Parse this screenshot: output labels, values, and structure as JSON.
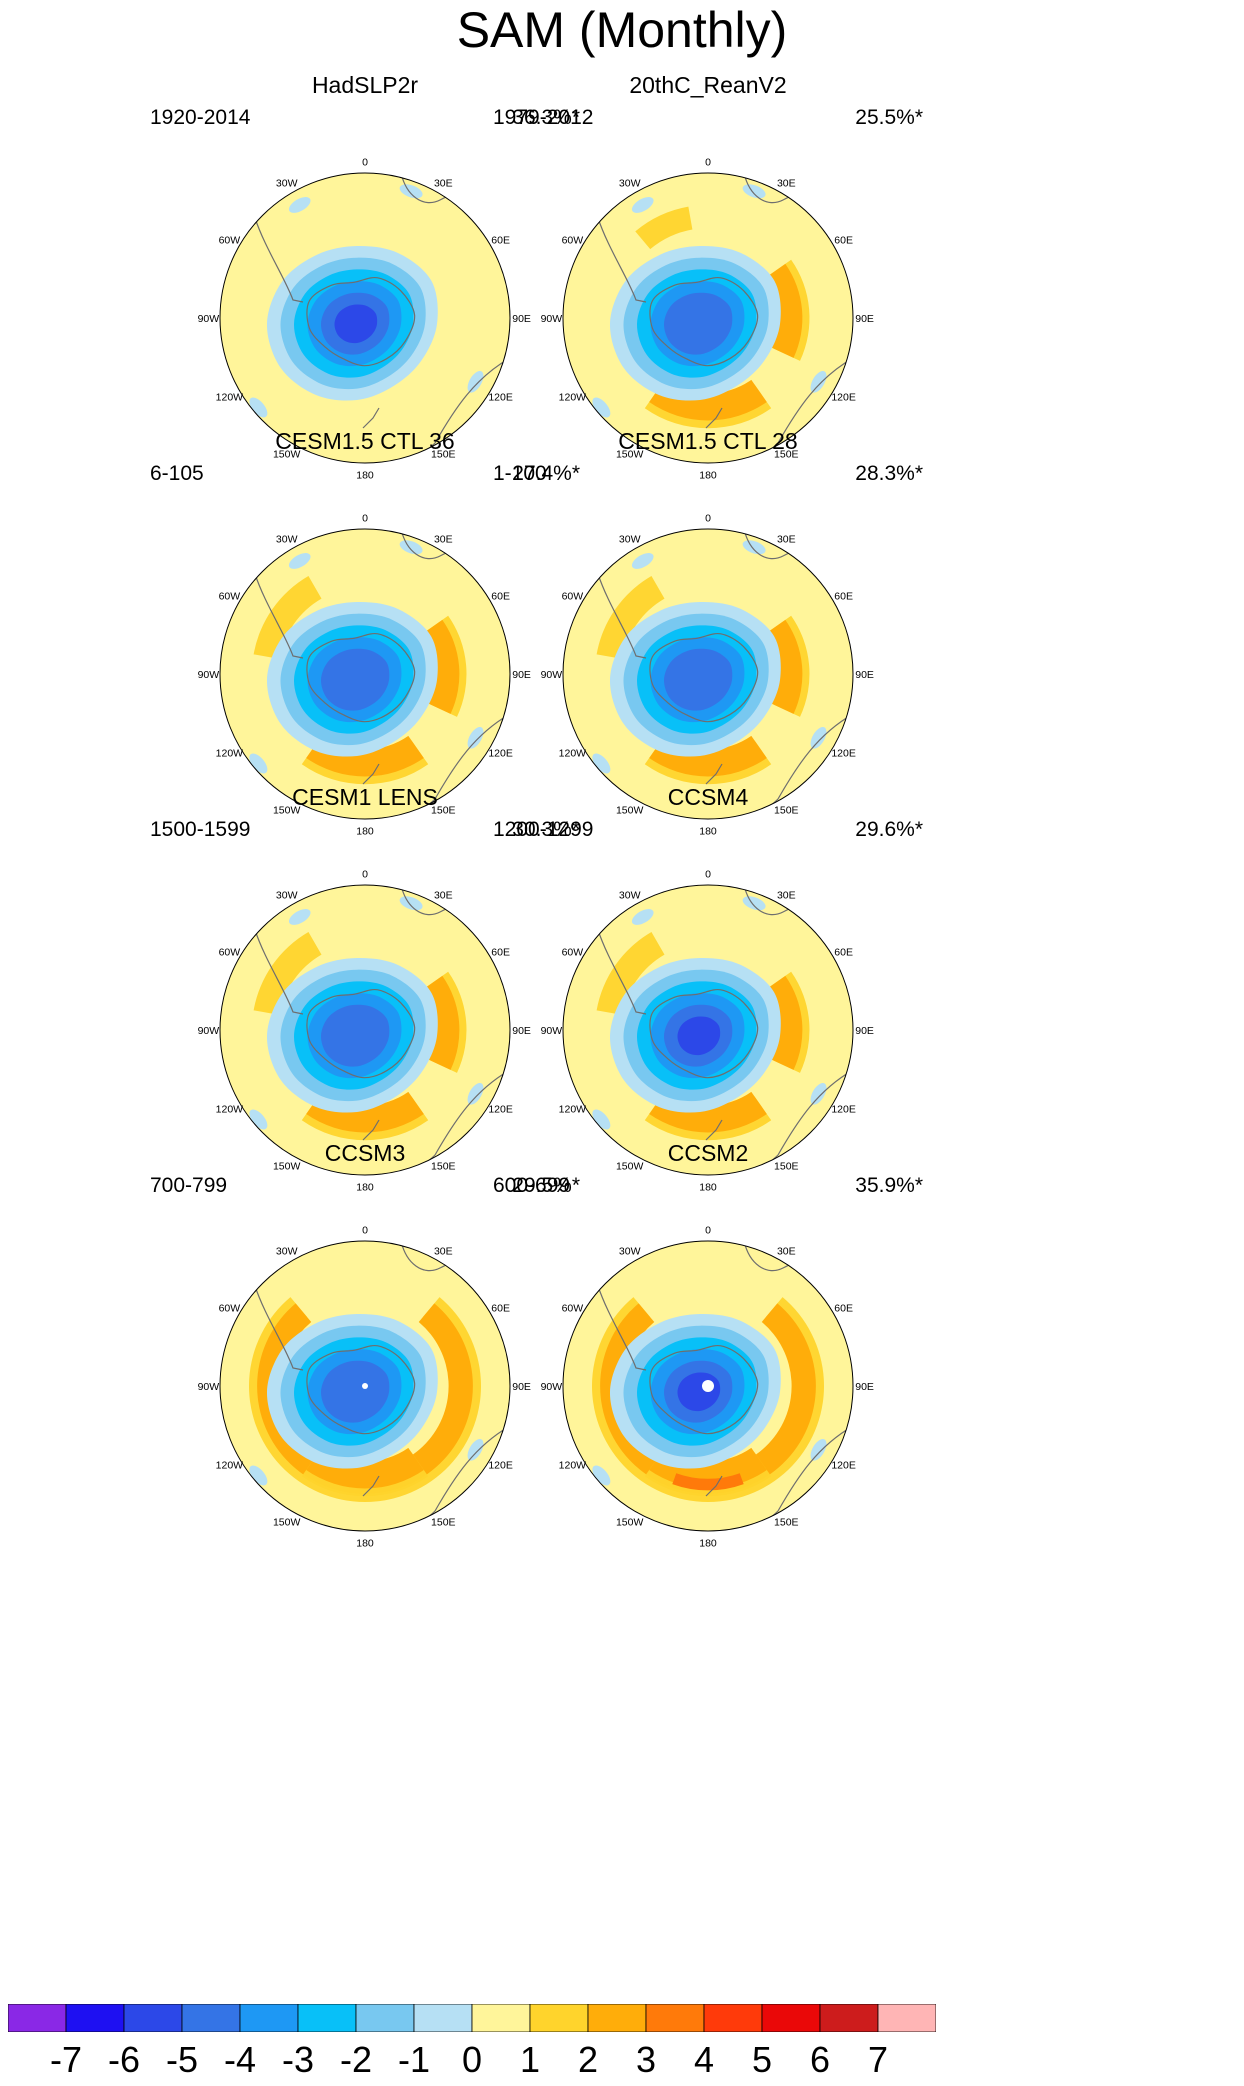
{
  "figure": {
    "title": "SAM (Monthly)"
  },
  "colors": {
    "land_outline": "#6e6e6e",
    "map_border": "#000000",
    "background_field": "#fff59a",
    "pole_dot": "#ffffff"
  },
  "lon_labels": [
    "0",
    "30E",
    "60E",
    "90E",
    "120E",
    "150E",
    "180",
    "150W",
    "120W",
    "90W",
    "60W",
    "30W"
  ],
  "chart_data": {
    "type": "polar-stereographic contour maps",
    "variable": "SAM regression pattern (sea level pressure)",
    "panels": [
      {
        "title": "HadSLP2r",
        "period": "1920-2014",
        "variance": "36.3%*",
        "min_level": -6,
        "pattern": "had",
        "highs": []
      },
      {
        "title": "20thC_ReanV2",
        "period": "1979-2012",
        "variance": "25.5%*",
        "min_level": -5,
        "pattern": "rean",
        "highs": [
          {
            "sector": "60E-90E",
            "level": 2
          },
          {
            "sector": "180",
            "level": 2
          },
          {
            "sector": "30W",
            "level": 1
          }
        ]
      },
      {
        "title": "CESM1.5 CTL 36",
        "period": "6-105",
        "variance": "27.4%*",
        "min_level": -5,
        "pattern": "cesm",
        "highs": [
          {
            "sector": "60E-90E",
            "level": 2
          },
          {
            "sector": "180",
            "level": 2
          },
          {
            "sector": "60W",
            "level": 1
          }
        ]
      },
      {
        "title": "CESM1.5 CTL 28",
        "period": "1-100",
        "variance": "28.3%*",
        "min_level": -5,
        "pattern": "cesm",
        "highs": [
          {
            "sector": "60E-90E",
            "level": 2
          },
          {
            "sector": "180",
            "level": 2
          },
          {
            "sector": "60W",
            "level": 1
          }
        ]
      },
      {
        "title": "CESM1 LENS",
        "period": "1500-1599",
        "variance": "30.3%*",
        "min_level": -5,
        "pattern": "cesm",
        "highs": [
          {
            "sector": "60E-90E",
            "level": 2
          },
          {
            "sector": "180",
            "level": 2
          },
          {
            "sector": "60W",
            "level": 1
          }
        ]
      },
      {
        "title": "CCSM4",
        "period": "1200-1299",
        "variance": "29.6%*",
        "min_level": -6,
        "pattern": "cesm",
        "highs": [
          {
            "sector": "60E-90E",
            "level": 2
          },
          {
            "sector": "180",
            "level": 2
          },
          {
            "sector": "60W",
            "level": 1
          }
        ]
      },
      {
        "title": "CCSM3",
        "period": "700-799",
        "variance": "29.5%*",
        "min_level": -5,
        "pattern": "ring",
        "highs": [
          {
            "sector": "ring",
            "level": 2
          },
          {
            "sector": "180",
            "level": 2
          }
        ]
      },
      {
        "title": "CCSM2",
        "period": "600-699",
        "variance": "35.9%*",
        "min_level": -6,
        "pattern": "ring",
        "highs": [
          {
            "sector": "ring",
            "level": 2
          },
          {
            "sector": "180",
            "level": 3
          }
        ]
      }
    ],
    "colorbar": {
      "ticks": [
        "-7",
        "-6",
        "-5",
        "-4",
        "-3",
        "-2",
        "-1",
        "0",
        "1",
        "2",
        "3",
        "4",
        "5",
        "6",
        "7"
      ],
      "levels": [
        -8,
        -7,
        -6,
        -5,
        -4,
        -3,
        -2,
        -1,
        0,
        1,
        2,
        3,
        4,
        5,
        6,
        7
      ],
      "colors": [
        "#8a28e6",
        "#1e10f2",
        "#2c48e8",
        "#3474e6",
        "#1e98f4",
        "#08c0f8",
        "#78c8f0",
        "#b6e0f4",
        "#fff59a",
        "#ffd42c",
        "#ffad0a",
        "#ff7a0a",
        "#ff3a0a",
        "#ea0808",
        "#cd1c1c",
        "#ffb5b5"
      ]
    }
  }
}
